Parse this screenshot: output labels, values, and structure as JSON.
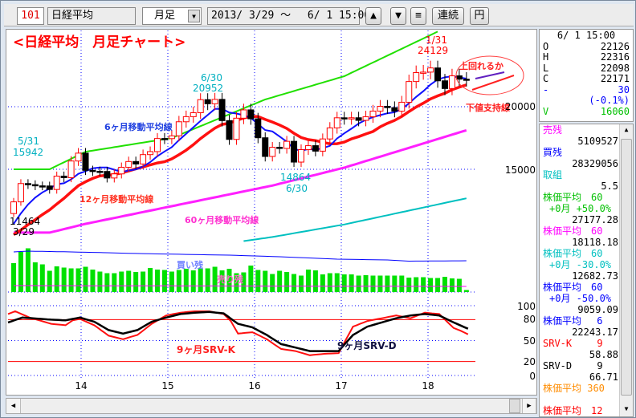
{
  "toolbar": {
    "code": "101",
    "name": "日経平均",
    "period": "月足",
    "range": "2013/ 3/29 ～　 6/ 1 15:00",
    "up": "▲",
    "down": "▼",
    "menu": "≡",
    "continuous": "連続",
    "yen": "円"
  },
  "info": {
    "datetime": "6/ 1 15:00",
    "rows": [
      {
        "k": "O",
        "v": "22126",
        "color": "#000"
      },
      {
        "k": "H",
        "v": "22316",
        "color": "#000"
      },
      {
        "k": "L",
        "v": "22098",
        "color": "#000"
      },
      {
        "k": "C",
        "v": "22171",
        "color": "#000"
      },
      {
        "k": "-",
        "v": "30",
        "color": "#0000ff"
      },
      {
        "k": "",
        "v": "(-0.1%)",
        "color": "#0000ff"
      },
      {
        "k": "V",
        "v": "16060",
        "color": "#00c000"
      }
    ]
  },
  "list": [
    {
      "label": "売残",
      "value": "5109527",
      "color": "#ff00ff"
    },
    {
      "label": "買残",
      "value": "28329056",
      "color": "#0000ff"
    },
    {
      "label": "取組",
      "value": "5.5",
      "color": "#00c0c0"
    },
    {
      "label": "株価平均　60",
      "sub": "+0月 +50.0%",
      "value": "27177.28",
      "color": "#00c000"
    },
    {
      "label": "株価平均　60",
      "value": "18118.18",
      "color": "#ff00ff"
    },
    {
      "label": "株価平均　60",
      "sub": "+0月 -30.0%",
      "value": "12682.73",
      "color": "#00c0c0"
    },
    {
      "label": "株価平均　60",
      "sub": "+0月 -50.0%",
      "value": "9059.09",
      "color": "#0000ff"
    },
    {
      "label": "株価平均　 6",
      "value": "22243.17",
      "color": "#0000ff"
    },
    {
      "label": "SRV-K　　 9",
      "value": "58.88",
      "color": "#ff0000"
    },
    {
      "label": "SRV-D　　 9",
      "value": "66.71",
      "color": "#000"
    },
    {
      "label": "株価平均 360",
      "value": "",
      "color": "#ff8c00"
    },
    {
      "label": "株価平均　12",
      "value": "",
      "color": "#ff0000"
    }
  ],
  "annotations": {
    "title": "<日経平均　月足チャート>",
    "a1": "5/31",
    "a1v": "15942",
    "a2": "6/30",
    "a2v": "20952",
    "a3": "11464",
    "a3d": "3/29",
    "a4": "14864",
    "a4d": "6/30",
    "a5": "1/31",
    "a5v": "24129",
    "ma6": "6ヶ月移動平均線",
    "ma12": "12ヶ月移動平均線",
    "ma60": "60ヶ月移動平均線",
    "q": "上回れるか",
    "support": "下値支持線",
    "buy": "買い残",
    "sell": "売り残",
    "srvk": "9ヶ月SRV-K",
    "srvd": "9ヶ月SRV-D"
  },
  "chart_data": {
    "type": "candlestick",
    "start": "2013/3",
    "pre_closes": [
      9520,
      8543,
      9007,
      8695,
      8840,
      8870,
      8928,
      9446,
      10395,
      11138,
      11559
    ],
    "closes": [
      12397,
      13861,
      13774,
      13677,
      13668,
      13388,
      14455,
      14327,
      15661,
      16291,
      14914,
      14841,
      14827,
      14304,
      14632,
      15162,
      15620,
      15424,
      16173,
      16413,
      17459,
      17450,
      17674,
      18797,
      19206,
      19520,
      20563,
      20235,
      20585,
      18890,
      17388,
      19083,
      19747,
      19033,
      17518,
      16026,
      16758,
      16666,
      17234,
      15575,
      16569,
      16887,
      16449,
      17425,
      18308,
      19114,
      19041,
      19118,
      18909,
      19196,
      19650,
      20033,
      19925,
      19646,
      20356,
      22011,
      22724,
      22764,
      23098,
      22068,
      21454,
      22467,
      22201,
      22171
    ],
    "first_open": 11464,
    "ma_green": [
      [
        0,
        15000
      ],
      [
        5,
        15000
      ],
      [
        10,
        16400
      ],
      [
        22,
        17500
      ],
      [
        35,
        20577
      ],
      [
        46,
        22436
      ],
      [
        59,
        26000
      ]
    ],
    "ma60": [
      [
        0,
        9940
      ],
      [
        5,
        9940
      ],
      [
        10,
        10640
      ],
      [
        36,
        13700
      ],
      [
        46,
        15130
      ],
      [
        63,
        18118
      ]
    ],
    "envelope_cyan_ratio": 0.7,
    "price_ticks": [
      20000,
      15000
    ],
    "x_ticks": [
      "14",
      "15",
      "16",
      "17",
      "18"
    ],
    "ratio_bars": [
      7.2,
      10,
      10.9,
      7.4,
      6.9,
      5.3,
      6.4,
      6.1,
      5.9,
      5.9,
      6.3,
      5.6,
      5.1,
      4.7,
      4.7,
      5.1,
      5.3,
      5,
      5.1,
      6,
      5.6,
      5.5,
      5.1,
      5.5,
      5.8,
      5.4,
      5.9,
      5.9,
      6.3,
      5.4,
      5.8,
      4.7,
      4.9,
      6.6,
      5.5,
      5.3,
      4.5,
      5.3,
      5,
      4.5,
      4.1,
      5.6,
      5.4,
      4.4,
      4.7,
      4.7,
      4.4,
      4.4,
      4.1,
      4.2,
      4.1,
      4.1,
      4.1,
      4.1,
      4.1,
      3.6,
      3.7,
      3.7,
      3.5,
      3.5,
      3.8,
      3.4,
      3.3,
      0.5
    ],
    "buy_line": [
      [
        0,
        100
      ],
      [
        2,
        102
      ],
      [
        8,
        100
      ],
      [
        20,
        95
      ],
      [
        30,
        92
      ],
      [
        37,
        88
      ],
      [
        45,
        82
      ],
      [
        52,
        80
      ],
      [
        55,
        77
      ],
      [
        63,
        78
      ]
    ],
    "sell_line": [
      [
        0,
        16
      ],
      [
        63,
        14
      ]
    ],
    "srv_ticks": [
      100,
      80,
      50,
      20,
      0
    ],
    "srv_k": [
      [
        0,
        88
      ],
      [
        1,
        92
      ],
      [
        3,
        83
      ],
      [
        6,
        74
      ],
      [
        8,
        72
      ],
      [
        9,
        79
      ],
      [
        10,
        81
      ],
      [
        12,
        72
      ],
      [
        14,
        57
      ],
      [
        16,
        52
      ],
      [
        18,
        58
      ],
      [
        20,
        74
      ],
      [
        22,
        86
      ],
      [
        24,
        90
      ],
      [
        26,
        92
      ],
      [
        28,
        92
      ],
      [
        30,
        88
      ],
      [
        31,
        78
      ],
      [
        32,
        60
      ],
      [
        34,
        62
      ],
      [
        36,
        52
      ],
      [
        38,
        38
      ],
      [
        40,
        35
      ],
      [
        42,
        29
      ],
      [
        44,
        31
      ],
      [
        46,
        32
      ],
      [
        48,
        70
      ],
      [
        50,
        78
      ],
      [
        52,
        82
      ],
      [
        54,
        86
      ],
      [
        56,
        82
      ],
      [
        58,
        90
      ],
      [
        60,
        88
      ],
      [
        61,
        78
      ],
      [
        62,
        68
      ],
      [
        63,
        64
      ],
      [
        64,
        59
      ]
    ],
    "srv_d": [
      [
        0,
        76
      ],
      [
        2,
        83
      ],
      [
        6,
        80
      ],
      [
        8,
        79
      ],
      [
        10,
        83
      ],
      [
        12,
        77
      ],
      [
        14,
        65
      ],
      [
        16,
        60
      ],
      [
        18,
        65
      ],
      [
        20,
        77
      ],
      [
        22,
        83
      ],
      [
        24,
        88
      ],
      [
        26,
        90
      ],
      [
        28,
        91
      ],
      [
        30,
        89
      ],
      [
        32,
        74
      ],
      [
        34,
        69
      ],
      [
        36,
        58
      ],
      [
        38,
        45
      ],
      [
        40,
        40
      ],
      [
        42,
        35
      ],
      [
        46,
        35
      ],
      [
        48,
        58
      ],
      [
        50,
        70
      ],
      [
        52,
        76
      ],
      [
        54,
        82
      ],
      [
        56,
        86
      ],
      [
        58,
        88
      ],
      [
        60,
        86
      ],
      [
        62,
        76
      ],
      [
        64,
        67
      ]
    ],
    "srv_lines": [
      80,
      20
    ]
  }
}
